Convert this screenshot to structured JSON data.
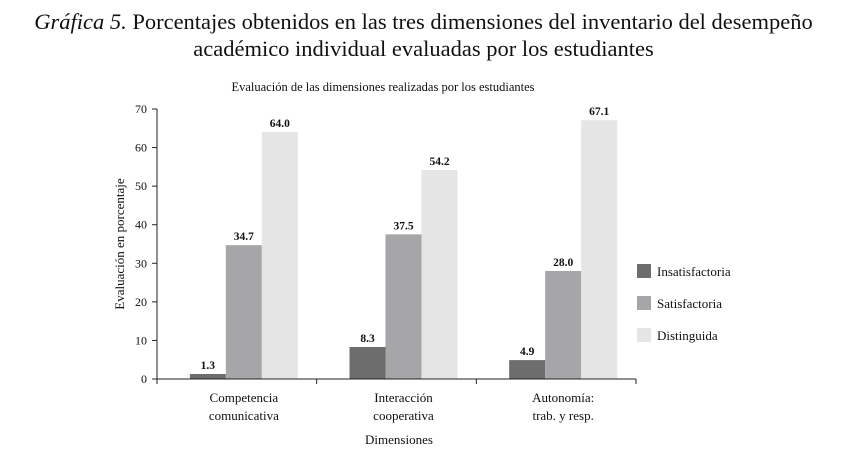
{
  "figure": {
    "label": "Gráfica 5.",
    "line1": "Porcentajes obtenidos en las tres dimensiones del inventario del desempeño",
    "line2": "académico individual evaluadas por los estudiantes"
  },
  "colors": {
    "series": [
      "#6d6d6d",
      "#a6a6a8",
      "#e5e5e6"
    ],
    "axis": "#222222",
    "text": "#111111"
  },
  "chart_data": {
    "type": "bar",
    "title": "Evaluación de las dimensiones realizadas por los estudiantes",
    "xlabel": "Dimensiones",
    "ylabel": "Evaluación en porcentaje",
    "ylim": [
      0,
      70
    ],
    "yticks": [
      0,
      10,
      20,
      30,
      40,
      50,
      60,
      70
    ],
    "categories": [
      [
        "Competencia",
        "comunicativa"
      ],
      [
        "Interacción",
        "cooperativa"
      ],
      [
        "Autonomía:",
        "trab. y resp."
      ]
    ],
    "series": [
      {
        "name": "Insatisfactoria",
        "values": [
          1.3,
          8.3,
          4.9
        ],
        "labels": [
          "1.3",
          "8.3",
          "4.9"
        ]
      },
      {
        "name": "Satisfactoria",
        "values": [
          34.7,
          37.5,
          28.0
        ],
        "labels": [
          "34.7",
          "37.5",
          "28.0"
        ]
      },
      {
        "name": "Distinguida",
        "values": [
          64.0,
          54.2,
          67.1
        ],
        "labels": [
          "64.0",
          "54.2",
          "67.1"
        ]
      }
    ],
    "legend_position": "right",
    "grid": false
  }
}
